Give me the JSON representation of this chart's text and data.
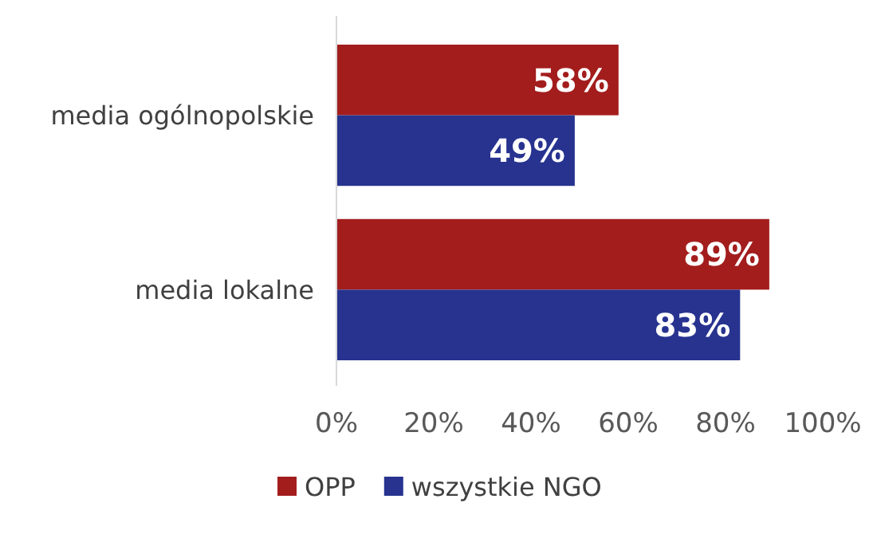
{
  "chart_data": {
    "type": "bar",
    "orientation": "horizontal",
    "categories": [
      "media ogólnopolskie",
      "media lokalne"
    ],
    "series": [
      {
        "name": "OPP",
        "color": "#a31d1d",
        "values": [
          58,
          89
        ],
        "value_labels": [
          "58%",
          "89%"
        ]
      },
      {
        "name": "wszystkie NGO",
        "color": "#27338f",
        "values": [
          49,
          83
        ],
        "value_labels": [
          "49%",
          "83%"
        ]
      }
    ],
    "xlim": [
      0,
      100
    ],
    "xticks": [
      {
        "value": 0,
        "label": "0%"
      },
      {
        "value": 20,
        "label": "20%"
      },
      {
        "value": 40,
        "label": "40%"
      },
      {
        "value": 60,
        "label": "60%"
      },
      {
        "value": 80,
        "label": "80%"
      },
      {
        "value": 100,
        "label": "100%"
      }
    ],
    "grid": false,
    "legend": "bottom"
  }
}
